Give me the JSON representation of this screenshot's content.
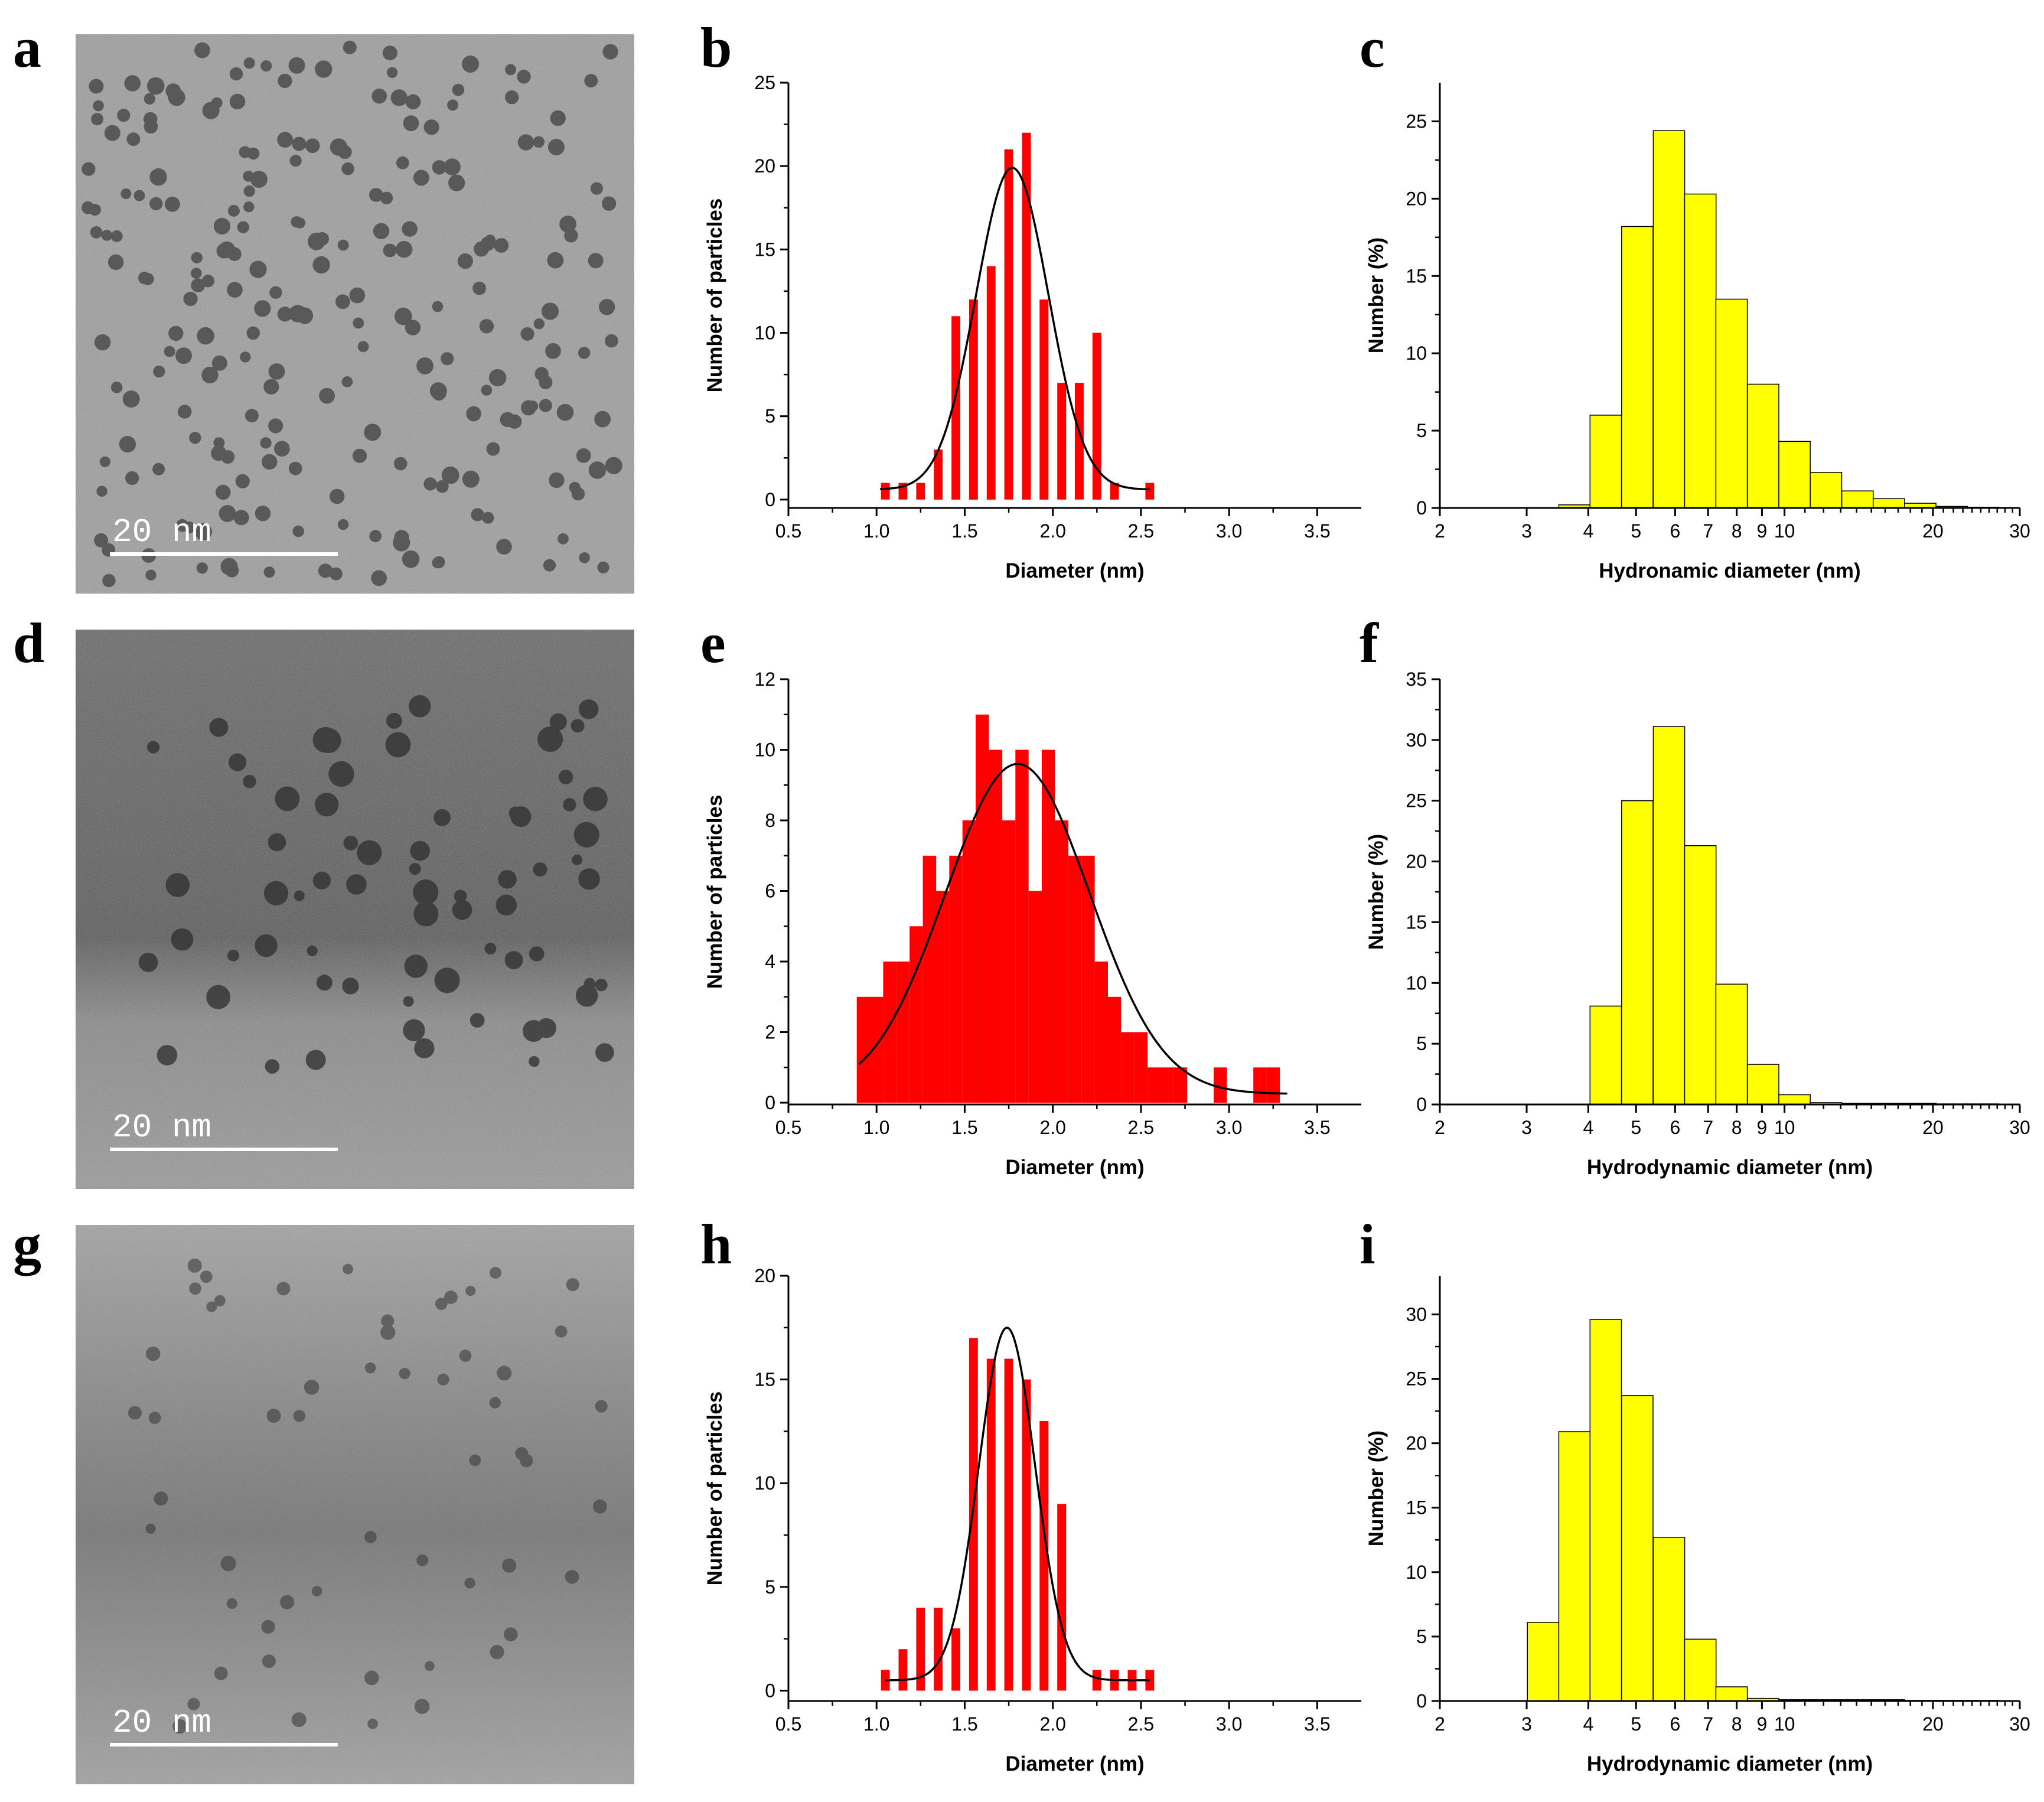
{
  "panels": {
    "a": {
      "label": "a",
      "scalebar": "20 nm"
    },
    "b": {
      "label": "b"
    },
    "c": {
      "label": "c"
    },
    "d": {
      "label": "d",
      "scalebar": "20 nm"
    },
    "e": {
      "label": "e"
    },
    "f": {
      "label": "f"
    },
    "g": {
      "label": "g",
      "scalebar": "20 nm"
    },
    "h": {
      "label": "h"
    },
    "i": {
      "label": "i"
    }
  },
  "colors": {
    "tem_bright": "#a8a8a8",
    "tem_dark": "#505050",
    "red_bar": "#ff0000",
    "yellow_bar": "#ffff00",
    "fit_line": "#000000"
  },
  "chart_data": [
    {
      "id": "b",
      "type": "bar",
      "xlabel": "Diameter (nm)",
      "ylabel": "Number of particles",
      "xlim": [
        0.5,
        3.75
      ],
      "ylim": [
        -0.5,
        25
      ],
      "xticks": [
        "0.5",
        "1.0",
        "1.5",
        "2.0",
        "2.5",
        "3.0",
        "3.5"
      ],
      "yticks": [
        "0",
        "5",
        "10",
        "15",
        "20",
        "25"
      ],
      "bin_width": 0.05,
      "x": [
        1.05,
        1.1,
        1.15,
        1.2,
        1.25,
        1.3,
        1.35,
        1.4,
        1.45,
        1.5,
        1.55,
        1.6,
        1.65,
        1.7,
        1.75,
        1.8,
        1.85,
        1.9,
        1.95,
        2.0,
        2.05,
        2.1,
        2.15,
        2.2,
        2.25,
        2.3,
        2.35,
        2.4,
        2.45,
        2.5,
        2.55
      ],
      "values": [
        1,
        0,
        1,
        0,
        1,
        0,
        3,
        0,
        11,
        0,
        12,
        0,
        14,
        0,
        21,
        0,
        22,
        0,
        12,
        0,
        7,
        0,
        7,
        0,
        10,
        0,
        1,
        0,
        0,
        0,
        1
      ],
      "fit": {
        "type": "gaussian",
        "mean": 1.77,
        "sigma": 0.205,
        "amplitude": 19.3,
        "baseline": 0.6,
        "x_range": [
          1.02,
          2.55
        ]
      }
    },
    {
      "id": "c",
      "type": "bar",
      "xscale": "log",
      "xlabel": "Hydronamic diameter (nm)",
      "ylabel": "Number (%)",
      "xlim": [
        2,
        30
      ],
      "ylim": [
        0,
        27.5
      ],
      "xticks": [
        "2",
        "3",
        "4",
        "5",
        "6",
        "7",
        "8",
        "9",
        "10",
        "20",
        "30"
      ],
      "yticks": [
        "0",
        "5",
        "10",
        "15",
        "20",
        "25"
      ],
      "bin_ratio": 1.158,
      "x": [
        3.75,
        4.34,
        5.03,
        5.83,
        6.75,
        7.81,
        9.05,
        10.48,
        12.14,
        14.06,
        16.28,
        18.85,
        21.83,
        25.28
      ],
      "values": [
        0.2,
        6.0,
        18.2,
        24.4,
        20.3,
        13.5,
        8.0,
        4.3,
        2.3,
        1.1,
        0.6,
        0.3,
        0.1,
        0.05
      ]
    },
    {
      "id": "e",
      "type": "bar",
      "xlabel": "Diameter (nm)",
      "ylabel": "Number of particles",
      "xlim": [
        0.5,
        3.75
      ],
      "ylim": [
        -0.05,
        12
      ],
      "xticks": [
        "0.5",
        "1.0",
        "1.5",
        "2.0",
        "2.5",
        "3.0",
        "3.5"
      ],
      "yticks": [
        "0",
        "2",
        "4",
        "6",
        "8",
        "10",
        "12"
      ],
      "bin_width": 0.075,
      "x": [
        0.925,
        1.0,
        1.075,
        1.15,
        1.225,
        1.3,
        1.375,
        1.45,
        1.525,
        1.6,
        1.675,
        1.75,
        1.825,
        1.9,
        1.975,
        2.05,
        2.125,
        2.2,
        2.275,
        2.35,
        2.425,
        2.5,
        2.575,
        2.65,
        2.725,
        2.8,
        2.875,
        2.95,
        3.025,
        3.1,
        3.175,
        3.25
      ],
      "values": [
        3,
        3,
        4,
        4,
        5,
        7,
        6,
        7,
        8,
        11,
        10,
        8,
        10,
        6,
        10,
        8,
        7,
        7,
        4,
        3,
        2,
        2,
        1,
        1,
        1,
        0,
        0,
        1,
        0,
        0,
        1,
        1
      ],
      "fit": {
        "type": "gaussian",
        "mean": 1.8,
        "sigma": 0.41,
        "amplitude": 9.35,
        "baseline": 0.25,
        "x_range": [
          0.9,
          3.33
        ]
      }
    },
    {
      "id": "f",
      "type": "bar",
      "xscale": "log",
      "xlabel": "Hydrodynamic diameter (nm)",
      "ylabel": "Number (%)",
      "xlim": [
        2,
        30
      ],
      "ylim": [
        0,
        35
      ],
      "xticks": [
        "2",
        "3",
        "4",
        "5",
        "6",
        "7",
        "8",
        "9",
        "10",
        "20",
        "30"
      ],
      "yticks": [
        "0",
        "5",
        "10",
        "15",
        "20",
        "25",
        "30",
        "35"
      ],
      "bin_ratio": 1.158,
      "x": [
        4.34,
        5.03,
        5.83,
        6.75,
        7.81,
        9.05,
        10.48,
        12.14,
        14.06,
        16.28,
        18.85,
        21.83,
        25.28
      ],
      "values": [
        8.1,
        25.0,
        31.1,
        21.3,
        9.9,
        3.3,
        0.8,
        0.15,
        0.1,
        0.1,
        0.1,
        0.05,
        0.05
      ]
    },
    {
      "id": "h",
      "type": "bar",
      "xlabel": "Diameter (nm)",
      "ylabel": "Number of particles",
      "xlim": [
        0.5,
        3.75
      ],
      "ylim": [
        -0.5,
        20
      ],
      "xticks": [
        "0.5",
        "1.0",
        "1.5",
        "2.0",
        "2.5",
        "3.0",
        "3.5"
      ],
      "yticks": [
        "0",
        "5",
        "10",
        "15",
        "20"
      ],
      "bin_width": 0.05,
      "x": [
        1.05,
        1.1,
        1.15,
        1.2,
        1.25,
        1.3,
        1.35,
        1.4,
        1.45,
        1.5,
        1.55,
        1.6,
        1.65,
        1.7,
        1.75,
        1.8,
        1.85,
        1.9,
        1.95,
        2.0,
        2.05,
        2.1,
        2.15,
        2.2,
        2.25,
        2.3,
        2.35,
        2.4,
        2.45,
        2.5,
        2.55
      ],
      "values": [
        1,
        0,
        2,
        0,
        4,
        0,
        4,
        0,
        3,
        0,
        17,
        0,
        16,
        0,
        16,
        0,
        15,
        0,
        13,
        0,
        9,
        0,
        0,
        0,
        1,
        0,
        1,
        0,
        1,
        0,
        1
      ],
      "fit": {
        "type": "gaussian",
        "mean": 1.74,
        "sigma": 0.16,
        "amplitude": 17.0,
        "baseline": 0.5,
        "x_range": [
          1.05,
          2.55
        ]
      }
    },
    {
      "id": "i",
      "type": "bar",
      "xscale": "log",
      "xlabel": "Hydrodynamic diameter (nm)",
      "ylabel": "Number (%)",
      "xlim": [
        2,
        30
      ],
      "ylim": [
        0,
        33
      ],
      "xticks": [
        "2",
        "3",
        "4",
        "5",
        "6",
        "7",
        "8",
        "9",
        "10",
        "20",
        "30"
      ],
      "yticks": [
        "0",
        "5",
        "10",
        "15",
        "20",
        "25",
        "30"
      ],
      "bin_ratio": 1.158,
      "x": [
        3.24,
        3.75,
        4.34,
        5.03,
        5.83,
        6.75,
        7.81,
        9.05,
        10.48,
        12.14,
        14.06,
        16.28,
        18.85,
        21.83,
        25.28
      ],
      "values": [
        6.1,
        20.9,
        29.6,
        23.7,
        12.7,
        4.8,
        1.1,
        0.2,
        0.1,
        0.1,
        0.1,
        0.1,
        0.05,
        0.05,
        0.05
      ]
    }
  ]
}
